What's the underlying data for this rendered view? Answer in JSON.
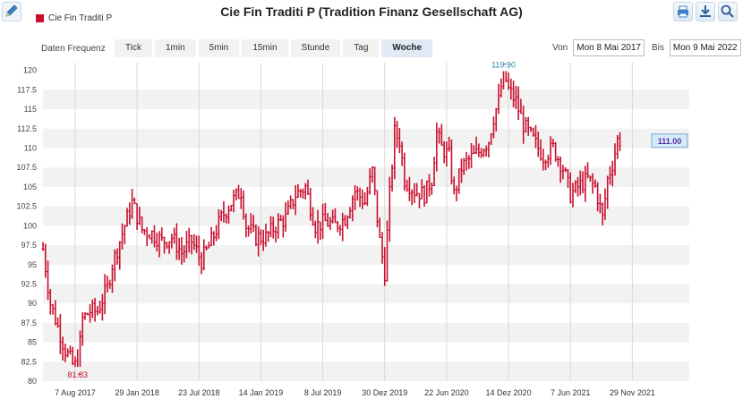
{
  "toolbar": {
    "legend_label": "Cie Fin Traditi P",
    "frequency_label": "Daten Frequenz",
    "frequencies": [
      "Tick",
      "1min",
      "5min",
      "15min",
      "Stunde",
      "Tag",
      "Woche"
    ],
    "active_frequency": "Woche",
    "from_label": "Von",
    "from_value": "Mon 8 Mai 2017",
    "to_label": "Bis",
    "to_value": "Mon 9 Mai 2022"
  },
  "colors": {
    "series": "#c8102e",
    "high_label": "#2a8ab8",
    "low_label": "#c8102e",
    "last_badge_text": "#5a2ca0"
  },
  "chart_data": {
    "type": "ohlc",
    "title": "Cie Fin Traditi P (Tradition Finanz Gesellschaft AG)",
    "series_name": "Cie Fin Traditi P",
    "ylim": [
      80,
      121
    ],
    "yticks": [
      80,
      82.5,
      85,
      87.5,
      90,
      92.5,
      95,
      97.5,
      100,
      102.5,
      105,
      107.5,
      110,
      112.5,
      115,
      117.5,
      120
    ],
    "ytick_labels": [
      "80",
      "82.5",
      "85",
      "87.5",
      "90",
      "92.5",
      "95",
      "97.5",
      "100",
      "102.5",
      "105",
      "107.5",
      "110",
      "112.5",
      "115",
      "117.5",
      "120"
    ],
    "xtick_labels": [
      "7 Aug 2017",
      "29 Jan 2018",
      "23 Jul 2018",
      "14 Jan 2019",
      "8 Jul 2019",
      "30 Dez 2019",
      "22 Jun 2020",
      "14 Dez 2020",
      "7 Jun 2021",
      "29 Nov 2021"
    ],
    "xtick_weeks": [
      13,
      38,
      63,
      88,
      113,
      138,
      163,
      188,
      213,
      238
    ],
    "max_label": "119.90",
    "min_label": "81.83",
    "last_label": "111.00",
    "anchors": [
      [
        0,
        97
      ],
      [
        3,
        90
      ],
      [
        6,
        87
      ],
      [
        9,
        84
      ],
      [
        12,
        82.2
      ],
      [
        14,
        81.83
      ],
      [
        16,
        88
      ],
      [
        19,
        89
      ],
      [
        22,
        89
      ],
      [
        26,
        92
      ],
      [
        28,
        95
      ],
      [
        32,
        99
      ],
      [
        36,
        103
      ],
      [
        40,
        99.5
      ],
      [
        44,
        99
      ],
      [
        48,
        98
      ],
      [
        52,
        98.5
      ],
      [
        56,
        96.5
      ],
      [
        60,
        98
      ],
      [
        64,
        95.5
      ],
      [
        68,
        98
      ],
      [
        72,
        101
      ],
      [
        76,
        103
      ],
      [
        80,
        104.5
      ],
      [
        82,
        100
      ],
      [
        86,
        98.5
      ],
      [
        90,
        98.5
      ],
      [
        94,
        100
      ],
      [
        98,
        101
      ],
      [
        102,
        104
      ],
      [
        106,
        105
      ],
      [
        110,
        100
      ],
      [
        114,
        100.5
      ],
      [
        118,
        100
      ],
      [
        122,
        101
      ],
      [
        126,
        104.5
      ],
      [
        130,
        103
      ],
      [
        133,
        107
      ],
      [
        136,
        98
      ],
      [
        138,
        94
      ],
      [
        140,
        104
      ],
      [
        142,
        112
      ],
      [
        144,
        111
      ],
      [
        146,
        106
      ],
      [
        150,
        104.5
      ],
      [
        154,
        104
      ],
      [
        157,
        106
      ],
      [
        159,
        112
      ],
      [
        161,
        110
      ],
      [
        164,
        109
      ],
      [
        166,
        104
      ],
      [
        169,
        107.5
      ],
      [
        172,
        108.5
      ],
      [
        176,
        109.5
      ],
      [
        180,
        111
      ],
      [
        182,
        114
      ],
      [
        184,
        116
      ],
      [
        186,
        119.9
      ],
      [
        188,
        117.5
      ],
      [
        191,
        116
      ],
      [
        194,
        113
      ],
      [
        198,
        111
      ],
      [
        202,
        109
      ],
      [
        206,
        110
      ],
      [
        210,
        107.5
      ],
      [
        213,
        104
      ],
      [
        216,
        105
      ],
      [
        220,
        106
      ],
      [
        223,
        105
      ],
      [
        226,
        101
      ],
      [
        228,
        106
      ],
      [
        230,
        108
      ],
      [
        232,
        111
      ],
      [
        233,
        111
      ]
    ]
  }
}
